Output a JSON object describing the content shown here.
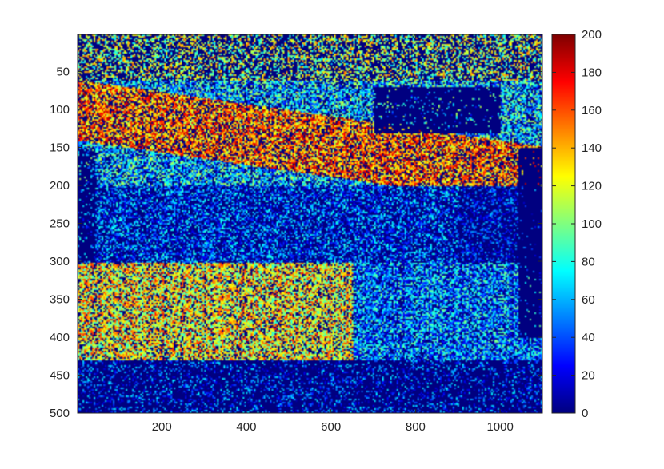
{
  "chart_data": {
    "type": "heatmap",
    "title": "",
    "xlabel": "",
    "ylabel": "",
    "xlim": [
      1,
      1100
    ],
    "ylim": [
      1,
      500
    ],
    "y_reversed": true,
    "x_ticks": [
      200,
      400,
      600,
      800,
      1000
    ],
    "y_ticks": [
      50,
      100,
      150,
      200,
      250,
      300,
      350,
      400,
      450,
      500
    ],
    "colorbar": {
      "colormap": "jet",
      "range": [
        0,
        200
      ],
      "ticks": [
        0,
        20,
        40,
        60,
        80,
        100,
        120,
        140,
        160,
        180,
        200
      ]
    },
    "grid": false,
    "legend": "none",
    "colors": {
      "background_value_color": "#00007f",
      "axis_color": "#262626"
    },
    "regions": [
      {
        "description_rows": [
          1,
          60
        ],
        "x_range": [
          1,
          1100
        ],
        "typical_value": 110
      },
      {
        "description_rows": [
          60,
          200
        ],
        "x_range": [
          1,
          1100
        ],
        "typical_value": 150
      },
      {
        "description_rows": [
          150,
          330
        ],
        "x_range": [
          150,
          900
        ],
        "typical_value": 40
      },
      {
        "description_rows": [
          280,
          430
        ],
        "x_range": [
          1,
          650
        ],
        "typical_value": 130
      },
      {
        "description_rows": [
          430,
          500
        ],
        "x_range": [
          1,
          1100
        ],
        "typical_value": 20
      }
    ]
  }
}
